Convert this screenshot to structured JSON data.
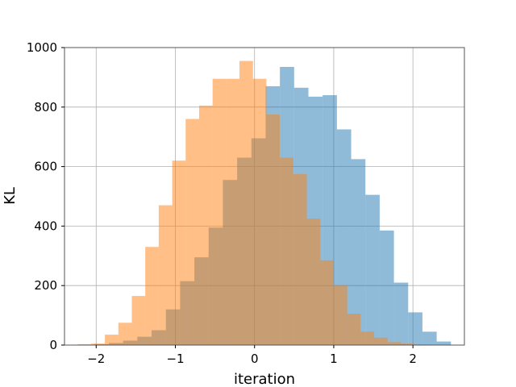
{
  "chart_data": {
    "type": "bar",
    "xlabel": "iteration",
    "ylabel": "KL",
    "xlim": [
      -2.4,
      2.65
    ],
    "ylim": [
      0,
      1000
    ],
    "x_ticks": [
      -2,
      -1,
      0,
      1,
      2
    ],
    "x_tick_labels": [
      "−2",
      "−1",
      "0",
      "1",
      "2"
    ],
    "y_ticks": [
      0,
      200,
      400,
      600,
      800,
      1000
    ],
    "y_tick_labels": [
      "0",
      "200",
      "400",
      "600",
      "800",
      "1000"
    ],
    "grid": true,
    "series": [
      {
        "color": "#1f77b4",
        "alpha": 0.5,
        "bin_edges": [
          -2.02,
          -1.84,
          -1.66,
          -1.48,
          -1.3,
          -1.12,
          -0.94,
          -0.76,
          -0.58,
          -0.4,
          -0.22,
          -0.04,
          0.14,
          0.32,
          0.5,
          0.68,
          0.86,
          1.04,
          1.22,
          1.4,
          1.58,
          1.76,
          1.94,
          2.12,
          2.3,
          2.48
        ],
        "values": [
          3,
          7,
          15,
          28,
          50,
          120,
          215,
          295,
          395,
          555,
          630,
          695,
          870,
          935,
          865,
          835,
          840,
          725,
          625,
          505,
          385,
          210,
          110,
          45,
          12
        ]
      },
      {
        "color": "#ff7f0e",
        "alpha": 0.5,
        "bin_edges": [
          -2.23,
          -2.06,
          -1.89,
          -1.72,
          -1.55,
          -1.38,
          -1.21,
          -1.04,
          -0.87,
          -0.7,
          -0.53,
          -0.36,
          -0.19,
          -0.02,
          0.15,
          0.32,
          0.49,
          0.66,
          0.83,
          1.0,
          1.17,
          1.34,
          1.51,
          1.68,
          1.85,
          2.02,
          2.19
        ],
        "values": [
          3,
          5,
          35,
          75,
          165,
          330,
          470,
          620,
          760,
          805,
          895,
          895,
          955,
          895,
          775,
          630,
          575,
          425,
          285,
          200,
          105,
          45,
          25,
          10,
          5,
          2
        ]
      }
    ]
  }
}
